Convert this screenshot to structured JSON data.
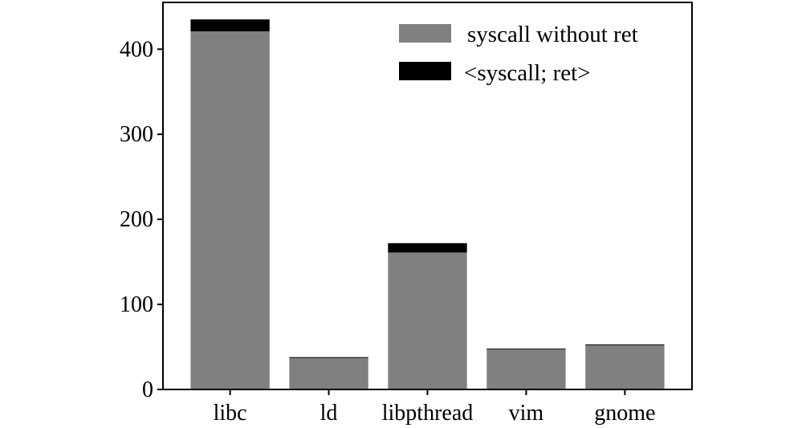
{
  "chart_data": {
    "type": "bar",
    "stacked": true,
    "title": "",
    "xlabel": "",
    "ylabel": "",
    "categories": [
      "libc",
      "ld",
      "libpthread",
      "vim",
      "gnome"
    ],
    "series": [
      {
        "name": "syscall without ret",
        "color": "#808080",
        "values": [
          421,
          37,
          161,
          47,
          52
        ]
      },
      {
        "name": "<syscall; ret>",
        "color": "#000000",
        "values": [
          14,
          1,
          11,
          1,
          1
        ]
      }
    ],
    "ylim": [
      0,
      455
    ],
    "yticks": [
      0,
      100,
      200,
      300,
      400
    ],
    "grid": false,
    "legend": "top-right"
  }
}
